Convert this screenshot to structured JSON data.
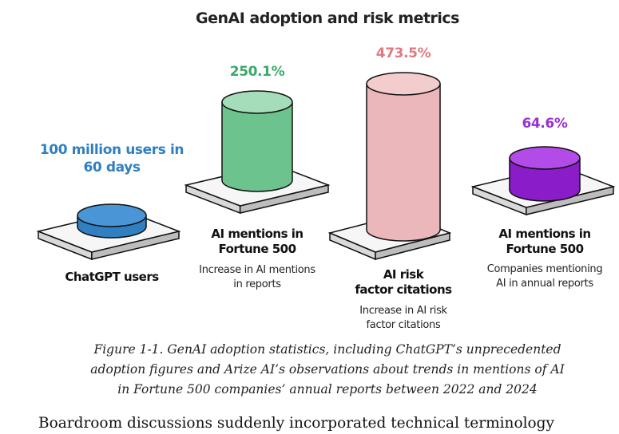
{
  "figure": {
    "title": "GenAI adoption and risk metrics",
    "items": [
      {
        "value_lines": [
          "100 million users in",
          "60 days"
        ],
        "label_lines": [
          "ChatGPT users"
        ],
        "description_lines": []
      },
      {
        "value_lines": [
          "250.1%"
        ],
        "label_lines": [
          "AI mentions in",
          "Fortune 500"
        ],
        "description_lines": [
          "Increase in AI mentions",
          "in reports"
        ]
      },
      {
        "value_lines": [
          "473.5%"
        ],
        "label_lines": [
          "AI risk",
          "factor citations"
        ],
        "description_lines": [
          "Increase in AI risk",
          "factor citations"
        ]
      },
      {
        "value_lines": [
          "64.6%"
        ],
        "label_lines": [
          "AI mentions in",
          "Fortune 500"
        ],
        "description_lines": [
          "Companies mentioning",
          "AI in annual reports"
        ]
      }
    ],
    "caption_lines": [
      "Figure 1-1. GenAI adoption statistics, including ChatGPT’s unprecedented",
      "adoption figures and Arize AI’s observations about trends in mentions of AI",
      "in Fortune 500 companies’ annual reports between 2022 and 2024"
    ]
  },
  "body": {
    "text": "Boardroom discussions suddenly incorporated technical terminology"
  }
}
